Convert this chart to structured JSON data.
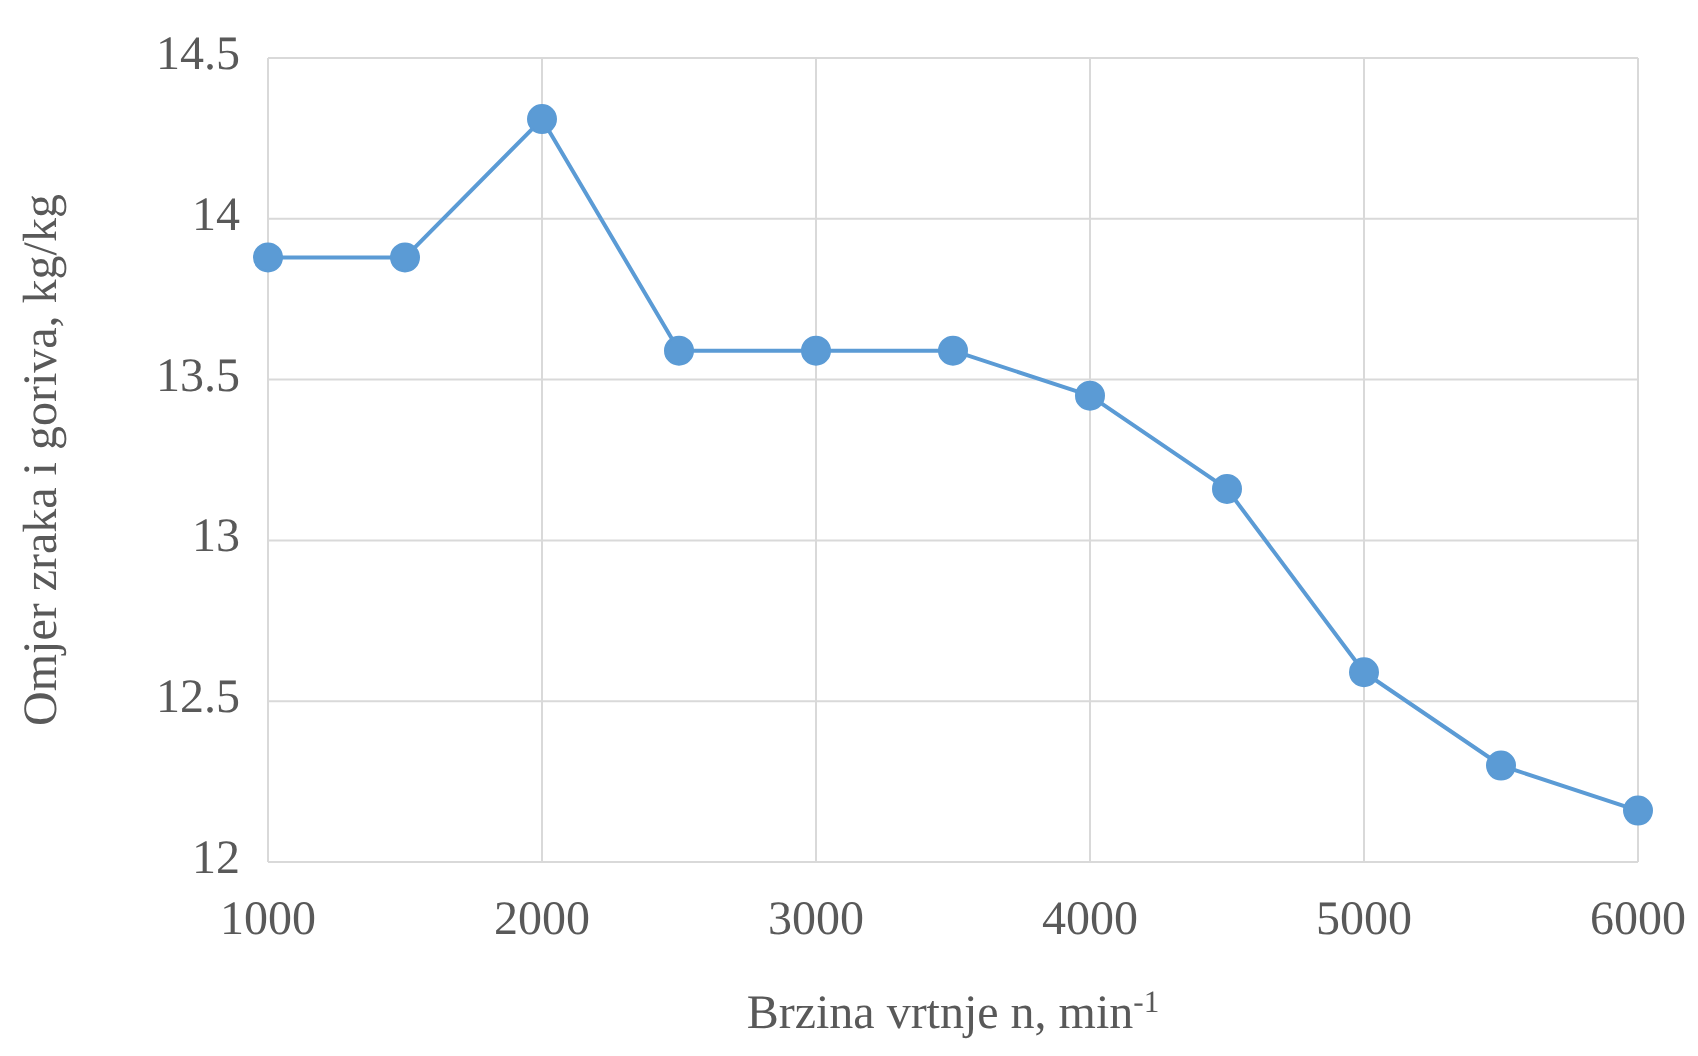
{
  "chart_data": {
    "type": "line",
    "xlabel": "Brzina vrtnje n, min$^{-1}$",
    "ylabel": "Omjer zraka i goriva, kg/kg",
    "x": [
      1000,
      1500,
      2000,
      2500,
      3000,
      3500,
      4000,
      4500,
      5000,
      5500,
      6000
    ],
    "series": [
      {
        "color": "#5b9bd5",
        "values": [
          13.88,
          13.88,
          14.31,
          13.59,
          13.59,
          13.59,
          13.45,
          13.16,
          12.59,
          12.3,
          12.16
        ]
      }
    ],
    "xlim": [
      1000,
      6000
    ],
    "xticks": [
      1000,
      2000,
      3000,
      4000,
      5000,
      6000
    ],
    "ylim": [
      12,
      14.5
    ],
    "yticks": [
      12,
      12.5,
      13,
      13.5,
      14,
      14.5
    ],
    "grid": true,
    "marker": "circle",
    "line_style": "solid"
  }
}
